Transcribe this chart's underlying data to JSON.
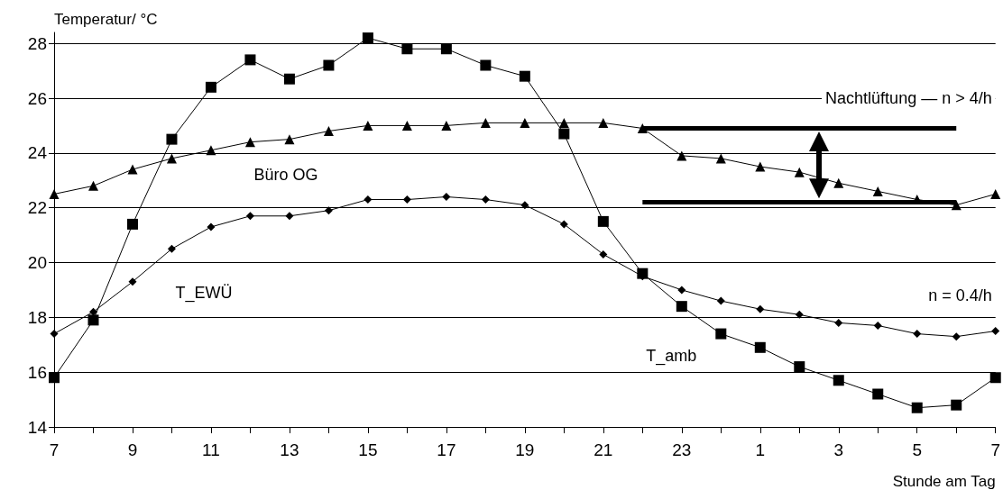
{
  "chart_data": {
    "type": "line",
    "ylabel": "Temperatur/ °C",
    "xlabel": "Stunde am Tag",
    "categories": [
      "7",
      null,
      "9",
      null,
      "11",
      null,
      "13",
      null,
      "15",
      null,
      "17",
      null,
      "19",
      null,
      "21",
      null,
      "23",
      null,
      "1",
      null,
      "3",
      null,
      "5",
      null,
      "7"
    ],
    "series": [
      {
        "color": "#000000",
        "marker": "square",
        "values": [
          15.8,
          17.9,
          21.4,
          24.5,
          26.4,
          27.4,
          26.7,
          27.2,
          28.2,
          27.8,
          27.8,
          27.2,
          26.8,
          24.7,
          21.5,
          19.6,
          18.4,
          17.4,
          16.9,
          16.2,
          15.7,
          15.2,
          14.7,
          14.8,
          15.8
        ]
      },
      {
        "color": "#000000",
        "marker": "triangle",
        "values": [
          22.5,
          22.8,
          23.4,
          23.8,
          24.1,
          24.4,
          24.5,
          24.8,
          25.0,
          25.0,
          25.0,
          25.1,
          25.1,
          25.1,
          25.1,
          24.9,
          23.9,
          23.8,
          23.5,
          23.3,
          22.9,
          22.6,
          22.3,
          22.1,
          22.5
        ]
      },
      {
        "color": "#000000",
        "marker": "diamond",
        "values": [
          17.4,
          18.2,
          19.3,
          20.5,
          21.3,
          21.7,
          21.7,
          21.9,
          22.3,
          22.3,
          22.4,
          22.3,
          22.1,
          21.4,
          20.3,
          19.5,
          19.0,
          18.6,
          18.3,
          18.1,
          17.8,
          17.7,
          17.4,
          17.3,
          17.5
        ]
      },
      {
        "color": "#000000",
        "marker": "none",
        "values": [
          null,
          null,
          null,
          null,
          null,
          null,
          null,
          null,
          null,
          null,
          null,
          null,
          null,
          null,
          null,
          24.9,
          24.9,
          24.9,
          24.9,
          24.9,
          24.9,
          24.9,
          24.9,
          24.9,
          null
        ]
      },
      {
        "color": "#000000",
        "marker": "none",
        "values": [
          null,
          null,
          null,
          null,
          null,
          null,
          null,
          null,
          null,
          null,
          null,
          null,
          null,
          null,
          null,
          22.2,
          22.2,
          22.2,
          22.2,
          22.2,
          22.2,
          22.2,
          22.2,
          22.2,
          null
        ]
      }
    ],
    "ylim": [
      14,
      28.4
    ],
    "yticks": [
      14,
      16,
      18,
      20,
      22,
      24,
      26,
      28
    ],
    "grid": "y",
    "line_style": "solid",
    "annotations": [
      "Büro OG",
      "T_EWÜ",
      "T_amb",
      "Nachtlüftung — n > 4/h",
      "n = 0.4/h"
    ]
  }
}
